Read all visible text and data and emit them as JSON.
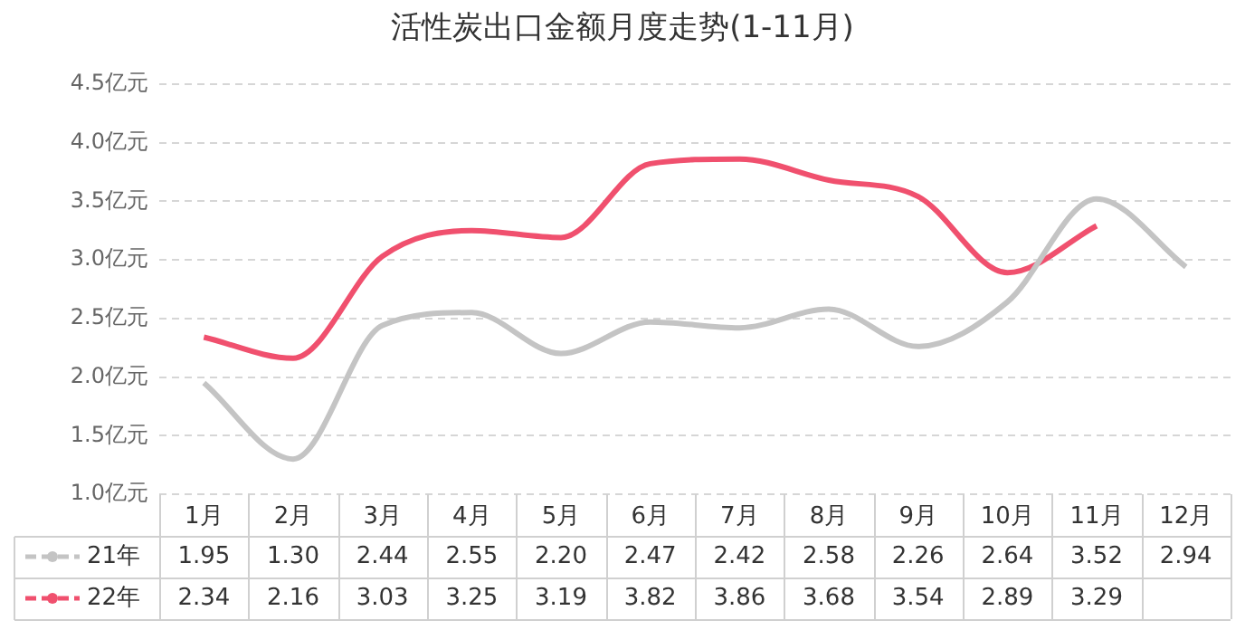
{
  "chart_data": {
    "type": "line",
    "title": "活性炭出口金额月度走势(1-11月)",
    "categories": [
      "1月",
      "2月",
      "3月",
      "4月",
      "5月",
      "6月",
      "7月",
      "8月",
      "9月",
      "10月",
      "11月",
      "12月"
    ],
    "series": [
      {
        "name": "21年",
        "color": "#c4c4c4",
        "values": [
          1.95,
          1.3,
          2.44,
          2.55,
          2.2,
          2.47,
          2.42,
          2.58,
          2.26,
          2.64,
          3.52,
          2.94
        ],
        "value_labels": [
          "1.95",
          "1.30",
          "2.44",
          "2.55",
          "2.20",
          "2.47",
          "2.42",
          "2.58",
          "2.26",
          "2.64",
          "3.52",
          "2.94"
        ]
      },
      {
        "name": "22年",
        "color": "#f0506e",
        "values": [
          2.34,
          2.16,
          3.03,
          3.25,
          3.19,
          3.82,
          3.86,
          3.68,
          3.54,
          2.89,
          3.29,
          null
        ],
        "value_labels": [
          "2.34",
          "2.16",
          "3.03",
          "3.25",
          "3.19",
          "3.82",
          "3.86",
          "3.68",
          "3.54",
          "2.89",
          "3.29",
          null
        ]
      }
    ],
    "ylim": [
      1,
      4.5
    ],
    "yticks": [
      {
        "value": 1,
        "label": "1.0亿元"
      },
      {
        "value": 1.5,
        "label": "1.5亿元"
      },
      {
        "value": 2,
        "label": "2.0亿元"
      },
      {
        "value": 2.5,
        "label": "2.5亿元"
      },
      {
        "value": 3,
        "label": "3.0亿元"
      },
      {
        "value": 3.5,
        "label": "3.5亿元"
      },
      {
        "value": 4,
        "label": "4.0亿元"
      },
      {
        "value": 4.5,
        "label": "4.5亿元"
      }
    ],
    "grid": "y",
    "legend": "bottom left",
    "marker": "none",
    "line_style": "solid"
  }
}
